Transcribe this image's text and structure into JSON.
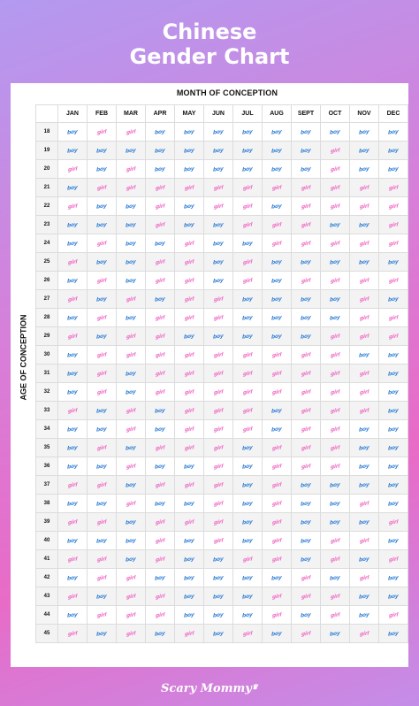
{
  "title_line1": "Chinese",
  "title_line2": "Gender Chart",
  "month_header": "MONTH OF CONCEPTION",
  "age_header": "AGE OF CONCEPTION",
  "months": [
    "JAN",
    "FEB",
    "MAR",
    "APR",
    "MAY",
    "JUN",
    "JUL",
    "AUG",
    "SEPT",
    "OCT",
    "NOV",
    "DEC"
  ],
  "labels": {
    "boy": "boy",
    "girl": "girl"
  },
  "colors": {
    "boy": "#3c86d8",
    "girl": "#f06fc7"
  },
  "rows": [
    {
      "age": "18",
      "cells": [
        "boy",
        "girl",
        "girl",
        "boy",
        "boy",
        "boy",
        "boy",
        "boy",
        "boy",
        "boy",
        "boy",
        "boy"
      ]
    },
    {
      "age": "19",
      "cells": [
        "boy",
        "boy",
        "boy",
        "boy",
        "boy",
        "boy",
        "boy",
        "boy",
        "boy",
        "girl",
        "boy",
        "boy"
      ]
    },
    {
      "age": "20",
      "cells": [
        "girl",
        "boy",
        "girl",
        "boy",
        "boy",
        "boy",
        "boy",
        "boy",
        "boy",
        "girl",
        "boy",
        "boy"
      ]
    },
    {
      "age": "21",
      "cells": [
        "boy",
        "girl",
        "girl",
        "girl",
        "girl",
        "girl",
        "girl",
        "girl",
        "girl",
        "girl",
        "girl",
        "girl"
      ]
    },
    {
      "age": "22",
      "cells": [
        "girl",
        "boy",
        "boy",
        "girl",
        "boy",
        "girl",
        "girl",
        "boy",
        "girl",
        "girl",
        "girl",
        "girl"
      ]
    },
    {
      "age": "23",
      "cells": [
        "boy",
        "boy",
        "boy",
        "girl",
        "boy",
        "boy",
        "girl",
        "girl",
        "girl",
        "boy",
        "boy",
        "girl"
      ]
    },
    {
      "age": "24",
      "cells": [
        "boy",
        "girl",
        "boy",
        "boy",
        "girl",
        "boy",
        "boy",
        "girl",
        "girl",
        "girl",
        "girl",
        "girl"
      ]
    },
    {
      "age": "25",
      "cells": [
        "girl",
        "boy",
        "boy",
        "girl",
        "girl",
        "boy",
        "girl",
        "boy",
        "boy",
        "boy",
        "boy",
        "boy"
      ]
    },
    {
      "age": "26",
      "cells": [
        "boy",
        "girl",
        "boy",
        "girl",
        "girl",
        "boy",
        "girl",
        "boy",
        "girl",
        "girl",
        "girl",
        "girl"
      ]
    },
    {
      "age": "27",
      "cells": [
        "girl",
        "boy",
        "girl",
        "boy",
        "girl",
        "girl",
        "boy",
        "boy",
        "boy",
        "boy",
        "girl",
        "boy"
      ]
    },
    {
      "age": "28",
      "cells": [
        "boy",
        "girl",
        "boy",
        "girl",
        "girl",
        "girl",
        "boy",
        "boy",
        "boy",
        "boy",
        "girl",
        "girl"
      ]
    },
    {
      "age": "29",
      "cells": [
        "girl",
        "boy",
        "girl",
        "girl",
        "boy",
        "boy",
        "boy",
        "boy",
        "boy",
        "girl",
        "girl",
        "girl"
      ]
    },
    {
      "age": "30",
      "cells": [
        "boy",
        "girl",
        "girl",
        "girl",
        "girl",
        "girl",
        "girl",
        "girl",
        "girl",
        "girl",
        "boy",
        "boy"
      ]
    },
    {
      "age": "31",
      "cells": [
        "boy",
        "girl",
        "boy",
        "girl",
        "girl",
        "girl",
        "girl",
        "girl",
        "girl",
        "girl",
        "girl",
        "boy"
      ]
    },
    {
      "age": "32",
      "cells": [
        "boy",
        "girl",
        "boy",
        "girl",
        "girl",
        "girl",
        "girl",
        "girl",
        "girl",
        "girl",
        "girl",
        "boy"
      ]
    },
    {
      "age": "33",
      "cells": [
        "girl",
        "boy",
        "girl",
        "boy",
        "girl",
        "girl",
        "girl",
        "boy",
        "girl",
        "girl",
        "girl",
        "boy"
      ]
    },
    {
      "age": "34",
      "cells": [
        "boy",
        "boy",
        "girl",
        "boy",
        "girl",
        "girl",
        "girl",
        "boy",
        "girl",
        "girl",
        "boy",
        "boy"
      ]
    },
    {
      "age": "35",
      "cells": [
        "boy",
        "girl",
        "boy",
        "girl",
        "girl",
        "girl",
        "boy",
        "girl",
        "girl",
        "girl",
        "boy",
        "boy"
      ]
    },
    {
      "age": "36",
      "cells": [
        "boy",
        "boy",
        "girl",
        "boy",
        "boy",
        "girl",
        "boy",
        "girl",
        "girl",
        "girl",
        "boy",
        "boy"
      ]
    },
    {
      "age": "37",
      "cells": [
        "girl",
        "girl",
        "boy",
        "girl",
        "girl",
        "girl",
        "boy",
        "girl",
        "boy",
        "boy",
        "boy",
        "boy"
      ]
    },
    {
      "age": "38",
      "cells": [
        "boy",
        "boy",
        "girl",
        "boy",
        "boy",
        "girl",
        "boy",
        "girl",
        "boy",
        "boy",
        "girl",
        "boy"
      ]
    },
    {
      "age": "39",
      "cells": [
        "girl",
        "girl",
        "boy",
        "girl",
        "girl",
        "girl",
        "boy",
        "girl",
        "boy",
        "boy",
        "boy",
        "girl"
      ]
    },
    {
      "age": "40",
      "cells": [
        "boy",
        "boy",
        "boy",
        "girl",
        "boy",
        "girl",
        "boy",
        "girl",
        "boy",
        "girl",
        "girl",
        "boy"
      ]
    },
    {
      "age": "41",
      "cells": [
        "girl",
        "girl",
        "boy",
        "girl",
        "boy",
        "boy",
        "girl",
        "girl",
        "boy",
        "girl",
        "boy",
        "girl"
      ]
    },
    {
      "age": "42",
      "cells": [
        "boy",
        "girl",
        "girl",
        "boy",
        "boy",
        "boy",
        "boy",
        "boy",
        "girl",
        "boy",
        "girl",
        "boy"
      ]
    },
    {
      "age": "43",
      "cells": [
        "girl",
        "boy",
        "girl",
        "girl",
        "boy",
        "boy",
        "boy",
        "girl",
        "girl",
        "girl",
        "boy",
        "boy"
      ]
    },
    {
      "age": "44",
      "cells": [
        "boy",
        "girl",
        "girl",
        "girl",
        "boy",
        "boy",
        "boy",
        "girl",
        "boy",
        "girl",
        "boy",
        "girl"
      ]
    },
    {
      "age": "45",
      "cells": [
        "girl",
        "boy",
        "girl",
        "boy",
        "girl",
        "boy",
        "girl",
        "boy",
        "girl",
        "boy",
        "girl",
        "boy"
      ]
    }
  ],
  "brand": "Scary Mommy",
  "brand_crown": "♛"
}
